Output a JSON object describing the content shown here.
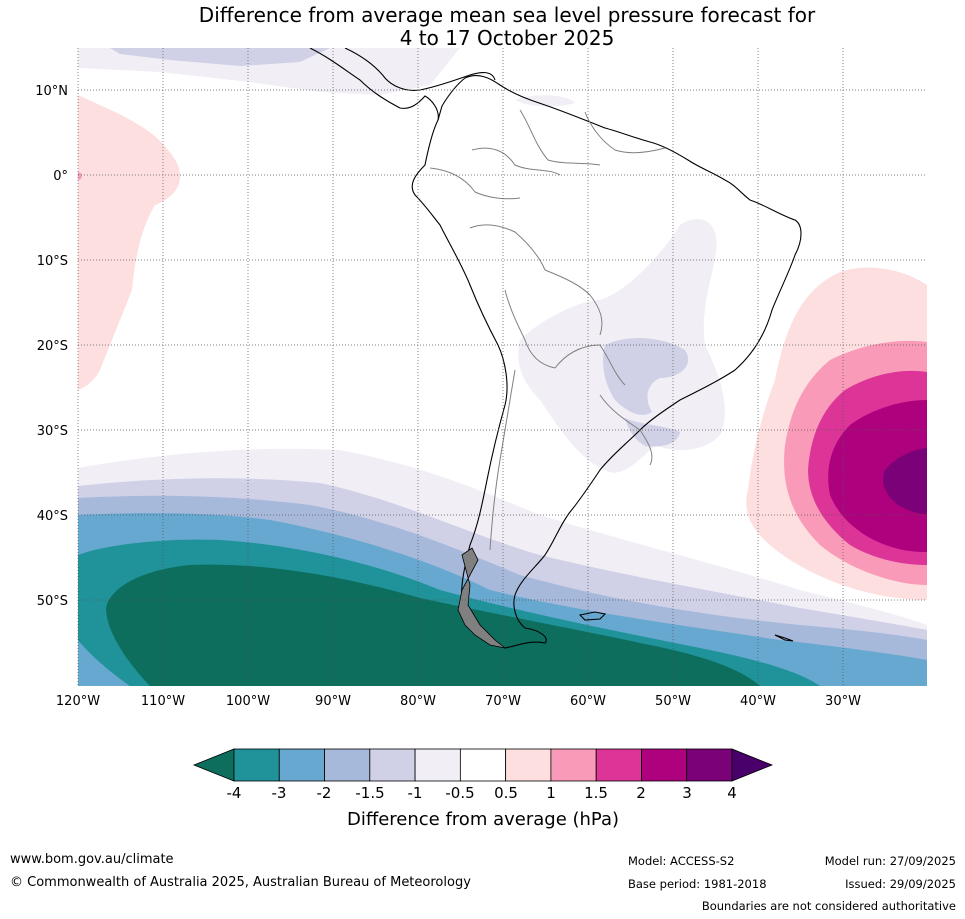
{
  "title": {
    "line1": "Difference from average mean sea level pressure forecast for",
    "line2": "4 to 17 October 2025"
  },
  "map": {
    "lat_labels": [
      "10°N",
      "0°",
      "10°S",
      "20°S",
      "30°S",
      "40°S",
      "50°S"
    ],
    "lon_labels": [
      "120°W",
      "110°W",
      "100°W",
      "90°W",
      "80°W",
      "70°W",
      "60°W",
      "50°W",
      "40°W",
      "30°W"
    ],
    "lat_values": [
      10,
      0,
      -10,
      -20,
      -30,
      -40,
      -50
    ],
    "lon_values": [
      -120,
      -110,
      -100,
      -90,
      -80,
      -70,
      -60,
      -50,
      -40,
      -30
    ]
  },
  "colorbar": {
    "tick_labels": [
      "-4",
      "-3",
      "-2",
      "-1.5",
      "-1",
      "-0.5",
      "0.5",
      "1",
      "1.5",
      "2",
      "3",
      "4"
    ],
    "colors": [
      "#0e6e5d",
      "#1f9399",
      "#66a8cf",
      "#a6b9db",
      "#d0d1e6",
      "#f1eef6",
      "#ffffff",
      "#fddfe0",
      "#f99bb8",
      "#dd3497",
      "#ae017e",
      "#7a0177",
      "#49006a"
    ],
    "label": "Difference from average (hPa)"
  },
  "footer": {
    "url": "www.bom.gov.au/climate",
    "copyright": "© Commonwealth of Australia 2025, Australian Bureau of Meteorology",
    "model": "Model: ACCESS-S2",
    "base_period": "Base period: 1981-2018",
    "model_run": "Model run: 27/09/2025",
    "issued": "Issued: 29/09/2025",
    "disclaimer": "Boundaries are not considered authoritative"
  }
}
